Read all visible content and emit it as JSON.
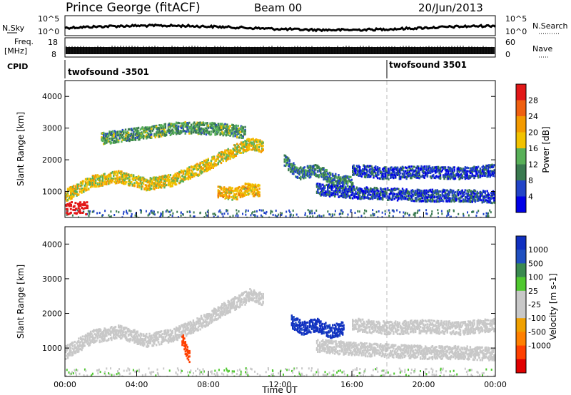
{
  "header": {
    "station": "Prince George (fitACF)",
    "beam": "Beam 00",
    "date": "20/Jun/2013"
  },
  "strip_panels": {
    "nsky": {
      "label": "N.Sky",
      "ticks": [
        "10^5",
        "10^0"
      ]
    },
    "nsearch": {
      "label": "N.Search",
      "ticks": [
        "10^5",
        "10^0"
      ]
    },
    "freq": {
      "label_line1": "Freq.",
      "label_line2": "[MHz]",
      "ticks": [
        "18",
        "8"
      ]
    },
    "nave": {
      "label": "Nave",
      "ticks": [
        "60",
        "0"
      ]
    },
    "cpid": {
      "label": "CPID",
      "entries": [
        "twofsound -3501",
        "twofsound 3501"
      ]
    }
  },
  "time_axis": {
    "label": "Time UT",
    "ticks": [
      "00:00",
      "04:00",
      "08:00",
      "12:00",
      "16:00",
      "20:00",
      "00:00"
    ]
  },
  "colors": {
    "power_scale": [
      "#0000e6",
      "#2244c8",
      "#3a7a50",
      "#58b058",
      "#f2c200",
      "#f39a00",
      "#f06010",
      "#e21818"
    ],
    "velocity_scale": [
      "#e00000",
      "#ff4000",
      "#ff8000",
      "#f0a000",
      "#c8c8c8",
      "#c8c8c8",
      "#50c830",
      "#3a8a50",
      "#2050c0",
      "#1030c0"
    ]
  },
  "chart_data": [
    {
      "type": "heatmap",
      "title": "",
      "xlabel": "",
      "ylabel": "Slant Range [km]",
      "colorbar_label": "Power [dB]",
      "colorbar_ticks": [
        "28",
        "24",
        "20",
        "16",
        "12",
        "8",
        "4"
      ],
      "xlim": [
        0,
        24
      ],
      "ylim": [
        180,
        4500
      ],
      "y_ticks": [
        "4000",
        "3000",
        "2000",
        "1000"
      ],
      "scatter_features": [
        {
          "t": [
            0.0,
            1.5,
            3.0,
            4.5,
            6.0,
            7.5,
            9.0,
            10.3,
            11.0
          ],
          "range": [
            900,
            1350,
            1500,
            1250,
            1400,
            1750,
            2200,
            2550,
            2450
          ],
          "power": 18
        },
        {
          "t": [
            2.0,
            4.0,
            6.5,
            8.5,
            10.0
          ],
          "range": [
            2700,
            2850,
            3050,
            3000,
            2900
          ],
          "power": 12
        },
        {
          "t": [
            8.5,
            9.5,
            10.0,
            10.8
          ],
          "range": [
            1000,
            950,
            1100,
            1050
          ],
          "power": 20
        },
        {
          "t": [
            12.2,
            13.0,
            14.0,
            15.0,
            16.0
          ],
          "range": [
            2000,
            1600,
            1700,
            1400,
            1300
          ],
          "power": 10
        },
        {
          "t": [
            14.0,
            16.0,
            18.0,
            20.0,
            22.0,
            24.0
          ],
          "range": [
            1100,
            1000,
            950,
            900,
            900,
            850
          ],
          "power": 6
        },
        {
          "t": [
            16.0,
            18.0,
            20.0,
            22.0,
            24.0
          ],
          "range": [
            1700,
            1600,
            1650,
            1600,
            1700
          ],
          "power": 6
        }
      ]
    },
    {
      "type": "heatmap",
      "title": "",
      "xlabel": "Time UT",
      "ylabel": "Slant Range [km]",
      "colorbar_label": "Velocity [m s-1]",
      "colorbar_ticks": [
        "1000",
        "500",
        "100",
        "25",
        "-25",
        "-100",
        "-500",
        "-1000"
      ],
      "xlim": [
        0,
        24
      ],
      "ylim": [
        180,
        4500
      ],
      "y_ticks": [
        "4000",
        "3000",
        "2000",
        "1000"
      ],
      "scatter_features": [
        {
          "t": [
            0.0,
            1.5,
            3.0,
            4.5,
            6.0,
            7.5,
            9.0,
            10.3,
            11.0
          ],
          "range": [
            900,
            1350,
            1500,
            1250,
            1400,
            1750,
            2200,
            2550,
            2450
          ],
          "velocity": 0
        },
        {
          "t": [
            6.5,
            6.7,
            6.9
          ],
          "range": [
            1300,
            1000,
            800
          ],
          "velocity": -500
        },
        {
          "t": [
            12.6,
            13.2,
            14.0,
            14.8,
            15.5
          ],
          "range": [
            1800,
            1600,
            1700,
            1500,
            1600
          ],
          "velocity": 800
        },
        {
          "t": [
            16.0,
            18.0,
            20.0,
            22.0,
            24.0
          ],
          "range": [
            1700,
            1600,
            1650,
            1600,
            1700
          ],
          "velocity": 0
        },
        {
          "t": [
            14.0,
            16.0,
            18.0,
            20.0,
            22.0,
            24.0
          ],
          "range": [
            1100,
            1000,
            950,
            900,
            900,
            850
          ],
          "velocity": 0
        }
      ]
    }
  ]
}
